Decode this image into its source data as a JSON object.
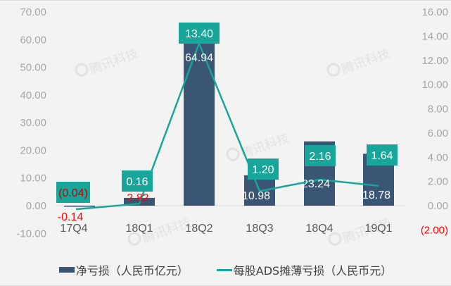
{
  "chart_data": {
    "type": "bar+line",
    "categories": [
      "17Q4",
      "18Q1",
      "18Q2",
      "18Q3",
      "18Q4",
      "19Q1"
    ],
    "series": [
      {
        "name": "净亏损（人民币亿元）",
        "type": "bar",
        "axis": "left",
        "color": "#3b5675",
        "values": [
          -0.14,
          2.82,
          64.94,
          10.98,
          23.24,
          18.78
        ],
        "labels": [
          "-0.14",
          "2.82",
          "64.94",
          "10.98",
          "23.24",
          "18.78"
        ]
      },
      {
        "name": "每股ADS摊薄亏损（人民币元）",
        "type": "line",
        "axis": "right",
        "color": "#18a59a",
        "values": [
          -0.04,
          0.16,
          13.4,
          1.2,
          2.16,
          1.64
        ],
        "labels": [
          "(0.04)",
          "0.16",
          "13.40",
          "1.20",
          "2.16",
          "1.64"
        ]
      }
    ],
    "left_axis": {
      "ticks": [
        "70.00",
        "60.00",
        "50.00",
        "40.00",
        "30.00",
        "20.00",
        "10.00",
        "0.00",
        "-10.00"
      ],
      "ylim": [
        -10,
        70
      ]
    },
    "right_axis": {
      "ticks": [
        "16.00",
        "14.00",
        "12.00",
        "10.00",
        "8.00",
        "6.00",
        "4.00",
        "2.00",
        "0.00",
        "(2.00)"
      ],
      "ylim": [
        -2,
        16
      ]
    },
    "title": "",
    "xlabel": "",
    "ylabel": "",
    "grid": false,
    "legend_position": "bottom"
  },
  "watermark": "腾讯科技",
  "legend": {
    "bar_label": "净亏损（人民币亿元）",
    "line_label": "每股ADS摊薄亏损（人民币元）"
  }
}
